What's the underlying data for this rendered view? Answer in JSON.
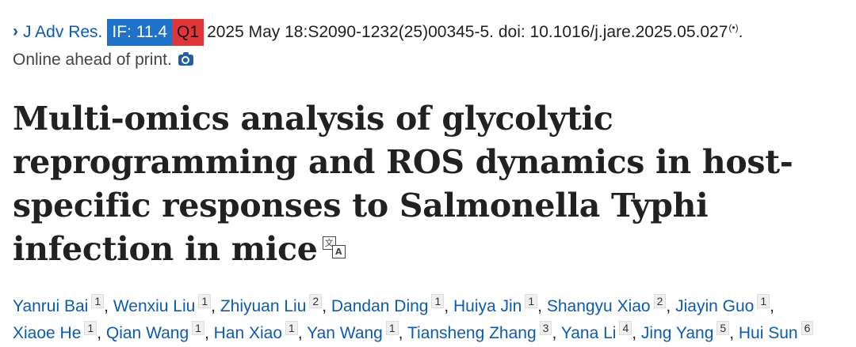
{
  "citation": {
    "journal": "J Adv Res.",
    "impact_factor": "IF: 11.4",
    "quartile": "Q1",
    "details": "2025 May 18:S2090-1232(25)00345-5. doi: 10.1016/j.jare.2025.05.027",
    "trailing": "."
  },
  "status": "Online ahead of print.",
  "title": "Multi-omics analysis of glycolytic reprogramming and ROS dynamics in host-specific responses to Salmonella Typhi infection in mice",
  "authors": [
    {
      "name": "Yanrui Bai",
      "aff": "1",
      "sep": ","
    },
    {
      "name": "Wenxiu Liu",
      "aff": "1",
      "sep": ","
    },
    {
      "name": "Zhiyuan Liu",
      "aff": "2",
      "sep": ","
    },
    {
      "name": "Dandan Ding",
      "aff": "1",
      "sep": ","
    },
    {
      "name": "Huiya Jin",
      "aff": "1",
      "sep": ","
    },
    {
      "name": "Shangyu Xiao",
      "aff": "2",
      "sep": ","
    },
    {
      "name": "Jiayin Guo",
      "aff": "1",
      "sep": ","
    },
    {
      "name": "Xiaoe He",
      "aff": "1",
      "sep": ","
    },
    {
      "name": "Qian Wang",
      "aff": "1",
      "sep": ","
    },
    {
      "name": "Han Xiao",
      "aff": "1",
      "sep": ","
    },
    {
      "name": "Yan Wang",
      "aff": "1",
      "sep": ","
    },
    {
      "name": "Tiansheng Zhang",
      "aff": "3",
      "sep": ","
    },
    {
      "name": "Yana Li",
      "aff": "4",
      "sep": ","
    },
    {
      "name": "Jing Yang",
      "aff": "5",
      "sep": ","
    },
    {
      "name": "Hui Sun",
      "aff": "6",
      "sep": ""
    }
  ],
  "icons": {
    "chevron": "›",
    "broadcast": "(•)",
    "camera": "camera-icon",
    "translate_a": "文",
    "translate_b": "A"
  },
  "colors": {
    "link": "#0a5bb5",
    "if_badge": "#1f72c9",
    "q_badge": "#e0363a"
  }
}
